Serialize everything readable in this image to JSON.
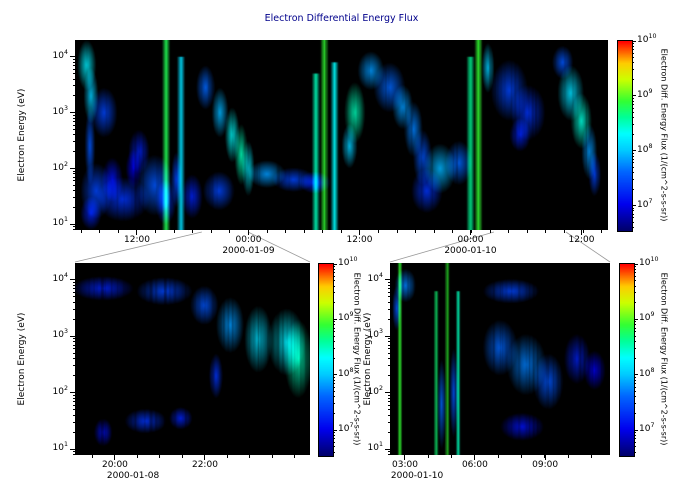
{
  "title": "Electron Differential Energy Flux",
  "ylabel": "Electron Energy (eV)",
  "colorbar_label": "Electron Diff. Energy Flux (1/(cm^2-s-s-sr))",
  "colors": {
    "background": "#ffffff",
    "panel_background": "#000000",
    "title_text": "#00008b",
    "axis_text": "#000000",
    "connector_line": "#999999"
  },
  "colormap": {
    "stops": [
      [
        6.5,
        "#000066"
      ],
      [
        7.0,
        "#0000ee"
      ],
      [
        7.6,
        "#0066ff"
      ],
      [
        8.0,
        "#00ccff"
      ],
      [
        8.3,
        "#00ffff"
      ],
      [
        8.6,
        "#00ff99"
      ],
      [
        8.9,
        "#33ff33"
      ],
      [
        9.3,
        "#ccff00"
      ],
      [
        9.6,
        "#ffcc00"
      ],
      [
        10.0,
        "#ff0000"
      ]
    ]
  },
  "energy_axis": {
    "min_exp": 0.9,
    "max_exp": 4.3,
    "tick_exps": [
      4,
      3,
      2,
      1
    ]
  },
  "flux_axis": {
    "min_exp": 6.5,
    "max_exp": 10.0,
    "tick_exps": [
      10,
      9,
      8,
      7
    ]
  },
  "feature_fields": [
    "x_frac",
    "log10_energy_center",
    "x_halfwidth_frac",
    "log10_energy_halfwidth",
    "log10_flux"
  ],
  "chart_data": [
    {
      "id": "main",
      "type": "heatmap",
      "x_ticks": [
        {
          "f": 0.1163,
          "label": "12:00"
        },
        {
          "f": 0.3255,
          "label": "00:00"
        },
        {
          "f": 0.5338,
          "label": "12:00"
        },
        {
          "f": 0.742,
          "label": "00:00"
        },
        {
          "f": 0.9503,
          "label": "12:00"
        }
      ],
      "x_minor_step": 0.034867,
      "dates": [
        {
          "f": 0.3255,
          "label": "2000-01-09"
        },
        {
          "f": 0.742,
          "label": "2000-01-10"
        }
      ],
      "zoom_regions": [
        {
          "target": "panel-z1",
          "f0": 0.238,
          "f1": 0.3246
        },
        {
          "target": "panel-z2",
          "f0": 0.786,
          "f1": 0.921
        }
      ],
      "features": [
        [
          0.022,
          3.85,
          0.018,
          0.45,
          8.2
        ],
        [
          0.03,
          3.3,
          0.014,
          0.5,
          8.0
        ],
        [
          0.028,
          2.4,
          0.01,
          0.7,
          7.5
        ],
        [
          0.055,
          3.0,
          0.025,
          0.45,
          7.4
        ],
        [
          0.04,
          1.6,
          0.03,
          0.5,
          7.4
        ],
        [
          0.09,
          1.45,
          0.05,
          0.4,
          7.3
        ],
        [
          0.15,
          1.7,
          0.035,
          0.55,
          7.5
        ],
        [
          0.12,
          2.3,
          0.02,
          0.4,
          7.2
        ],
        [
          0.03,
          1.2,
          0.02,
          0.3,
          7.2
        ],
        [
          0.07,
          1.8,
          0.02,
          0.4,
          7.1
        ],
        [
          0.11,
          2.0,
          0.015,
          0.35,
          7.0
        ],
        [
          0.17,
          1.4,
          0.02,
          0.4,
          7.3
        ],
        [
          0.19,
          1.8,
          0.01,
          0.5,
          7.4
        ],
        [
          0.171,
          2.5,
          0.004,
          1.9,
          8.8
        ],
        [
          0.199,
          2.3,
          0.004,
          1.7,
          8.1
        ],
        [
          0.245,
          3.45,
          0.018,
          0.4,
          7.6
        ],
        [
          0.272,
          3.0,
          0.016,
          0.45,
          7.9
        ],
        [
          0.295,
          2.6,
          0.014,
          0.5,
          8.3
        ],
        [
          0.312,
          2.25,
          0.013,
          0.55,
          8.5
        ],
        [
          0.325,
          2.0,
          0.012,
          0.5,
          8.2
        ],
        [
          0.36,
          1.9,
          0.035,
          0.25,
          7.8
        ],
        [
          0.41,
          1.8,
          0.04,
          0.22,
          7.4
        ],
        [
          0.45,
          1.75,
          0.03,
          0.2,
          7.2
        ],
        [
          0.22,
          1.5,
          0.02,
          0.4,
          7.2
        ],
        [
          0.27,
          1.6,
          0.03,
          0.35,
          7.4
        ],
        [
          0.452,
          2.2,
          0.004,
          1.5,
          8.5
        ],
        [
          0.468,
          2.5,
          0.004,
          1.9,
          8.9
        ],
        [
          0.487,
          2.3,
          0.004,
          1.6,
          8.3
        ],
        [
          0.525,
          3.0,
          0.02,
          0.55,
          8.5
        ],
        [
          0.515,
          2.4,
          0.015,
          0.4,
          8.0
        ],
        [
          0.555,
          3.75,
          0.025,
          0.35,
          7.8
        ],
        [
          0.59,
          3.45,
          0.03,
          0.45,
          7.6
        ],
        [
          0.615,
          3.1,
          0.02,
          0.4,
          7.8
        ],
        [
          0.635,
          2.7,
          0.018,
          0.5,
          7.7
        ],
        [
          0.652,
          2.2,
          0.018,
          0.5,
          7.5
        ],
        [
          0.66,
          1.6,
          0.03,
          0.4,
          7.3
        ],
        [
          0.685,
          2.0,
          0.03,
          0.45,
          7.9
        ],
        [
          0.72,
          2.1,
          0.025,
          0.4,
          7.6
        ],
        [
          0.742,
          2.4,
          0.004,
          1.6,
          8.6
        ],
        [
          0.757,
          2.6,
          0.004,
          1.9,
          8.9
        ],
        [
          0.775,
          3.8,
          0.012,
          0.45,
          8.0
        ],
        [
          0.815,
          3.4,
          0.035,
          0.55,
          7.4
        ],
        [
          0.85,
          3.0,
          0.033,
          0.5,
          7.3
        ],
        [
          0.835,
          2.6,
          0.02,
          0.3,
          7.2
        ],
        [
          0.915,
          3.9,
          0.02,
          0.3,
          7.5
        ],
        [
          0.93,
          3.35,
          0.025,
          0.5,
          8.1
        ],
        [
          0.95,
          2.85,
          0.02,
          0.5,
          8.4
        ],
        [
          0.965,
          2.3,
          0.015,
          0.5,
          7.8
        ],
        [
          0.975,
          1.9,
          0.012,
          0.4,
          7.4
        ]
      ]
    },
    {
      "id": "zoom1",
      "type": "heatmap",
      "x_ticks": [
        {
          "f": 0.17,
          "label": "20:00"
        },
        {
          "f": 0.553,
          "label": "22:00"
        }
      ],
      "x_minor_step": 0.0957,
      "dates": [
        {
          "f": 0.247,
          "label": "2000-01-08"
        }
      ],
      "features": [
        [
          0.12,
          3.85,
          0.13,
          0.22,
          7.2
        ],
        [
          0.38,
          3.8,
          0.12,
          0.25,
          7.4
        ],
        [
          0.55,
          3.55,
          0.06,
          0.35,
          7.5
        ],
        [
          0.66,
          3.2,
          0.06,
          0.5,
          7.8
        ],
        [
          0.78,
          2.95,
          0.06,
          0.6,
          8.1
        ],
        [
          0.9,
          2.9,
          0.08,
          0.6,
          8.2
        ],
        [
          0.95,
          2.6,
          0.06,
          0.7,
          8.5
        ],
        [
          0.3,
          1.5,
          0.09,
          0.22,
          7.3
        ],
        [
          0.45,
          1.55,
          0.05,
          0.2,
          7.2
        ],
        [
          0.12,
          1.3,
          0.04,
          0.25,
          7.1
        ],
        [
          0.6,
          2.3,
          0.03,
          0.4,
          7.3
        ]
      ]
    },
    {
      "id": "zoom2",
      "type": "heatmap",
      "x_ticks": [
        {
          "f": 0.068,
          "label": "03:00"
        },
        {
          "f": 0.386,
          "label": "06:00"
        },
        {
          "f": 0.705,
          "label": "09:00"
        }
      ],
      "x_minor_step": 0.106,
      "dates": [
        {
          "f": 0.123,
          "label": "2000-01-10"
        }
      ],
      "features": [
        [
          0.045,
          2.5,
          0.005,
          1.9,
          8.9
        ],
        [
          0.07,
          3.9,
          0.05,
          0.3,
          7.7
        ],
        [
          0.03,
          3.5,
          0.02,
          0.4,
          7.5
        ],
        [
          0.21,
          2.2,
          0.005,
          1.6,
          8.7
        ],
        [
          0.26,
          2.5,
          0.005,
          1.8,
          8.9
        ],
        [
          0.31,
          2.3,
          0.005,
          1.5,
          8.5
        ],
        [
          0.235,
          1.8,
          0.02,
          0.8,
          7.6
        ],
        [
          0.29,
          2.0,
          0.02,
          0.8,
          7.5
        ],
        [
          0.55,
          3.8,
          0.13,
          0.22,
          7.4
        ],
        [
          0.5,
          2.8,
          0.08,
          0.5,
          7.6
        ],
        [
          0.62,
          2.5,
          0.09,
          0.55,
          7.7
        ],
        [
          0.72,
          2.2,
          0.07,
          0.5,
          7.5
        ],
        [
          0.85,
          2.6,
          0.06,
          0.45,
          7.2
        ],
        [
          0.93,
          2.4,
          0.05,
          0.35,
          7.0
        ],
        [
          0.6,
          1.4,
          0.1,
          0.25,
          7.1
        ]
      ]
    }
  ]
}
